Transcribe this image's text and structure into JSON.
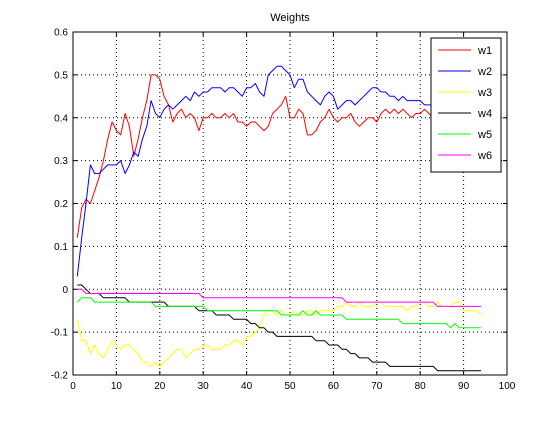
{
  "chart_data": {
    "type": "line",
    "title": "Weights",
    "xlabel": "",
    "ylabel": "",
    "xlim": [
      0,
      100
    ],
    "ylim": [
      -0.2,
      0.6
    ],
    "xticks": [
      0,
      10,
      20,
      30,
      40,
      50,
      60,
      70,
      80,
      90,
      100
    ],
    "yticks": [
      -0.2,
      -0.1,
      0,
      0.1,
      0.2,
      0.3,
      0.4,
      0.5,
      0.6
    ],
    "grid": true,
    "legend_position": "top-right",
    "series": [
      {
        "name": "w1",
        "color": "#ff0000",
        "x": [
          1,
          2,
          3,
          4,
          5,
          6,
          7,
          8,
          9,
          10,
          11,
          12,
          13,
          14,
          15,
          16,
          17,
          18,
          19,
          20,
          21,
          22,
          23,
          24,
          25,
          26,
          27,
          28,
          29,
          30,
          31,
          32,
          33,
          34,
          35,
          36,
          37,
          38,
          39,
          40,
          41,
          42,
          43,
          44,
          45,
          46,
          47,
          48,
          49,
          50,
          51,
          52,
          53,
          54,
          55,
          56,
          57,
          58,
          59,
          60,
          61,
          62,
          63,
          64,
          65,
          66,
          67,
          68,
          69,
          70,
          71,
          72,
          73,
          74,
          75,
          76,
          77,
          78,
          79,
          80,
          81,
          82,
          83,
          84
        ],
        "values": [
          0.12,
          0.19,
          0.21,
          0.2,
          0.23,
          0.26,
          0.3,
          0.35,
          0.39,
          0.37,
          0.36,
          0.41,
          0.38,
          0.31,
          0.35,
          0.4,
          0.44,
          0.5,
          0.5,
          0.49,
          0.45,
          0.43,
          0.39,
          0.41,
          0.42,
          0.4,
          0.41,
          0.4,
          0.37,
          0.4,
          0.4,
          0.41,
          0.4,
          0.4,
          0.41,
          0.4,
          0.41,
          0.39,
          0.39,
          0.38,
          0.39,
          0.39,
          0.38,
          0.37,
          0.38,
          0.41,
          0.42,
          0.43,
          0.45,
          0.4,
          0.4,
          0.42,
          0.41,
          0.36,
          0.36,
          0.37,
          0.39,
          0.4,
          0.42,
          0.4,
          0.39,
          0.4,
          0.4,
          0.41,
          0.39,
          0.38,
          0.39,
          0.4,
          0.4,
          0.39,
          0.41,
          0.42,
          0.41,
          0.42,
          0.41,
          0.42,
          0.41,
          0.4,
          0.41,
          0.41,
          0.42,
          0.41,
          0.4,
          0.4
        ]
      },
      {
        "name": "w2",
        "color": "#0000ff",
        "x": [
          1,
          2,
          3,
          4,
          5,
          6,
          7,
          8,
          9,
          10,
          11,
          12,
          13,
          14,
          15,
          16,
          17,
          18,
          19,
          20,
          21,
          22,
          23,
          24,
          25,
          26,
          27,
          28,
          29,
          30,
          31,
          32,
          33,
          34,
          35,
          36,
          37,
          38,
          39,
          40,
          41,
          42,
          43,
          44,
          45,
          46,
          47,
          48,
          49,
          50,
          51,
          52,
          53,
          54,
          55,
          56,
          57,
          58,
          59,
          60,
          61,
          62,
          63,
          64,
          65,
          66,
          67,
          68,
          69,
          70,
          71,
          72,
          73,
          74,
          75,
          76,
          77,
          78,
          79,
          80,
          81,
          82,
          83,
          84
        ],
        "values": [
          0.03,
          0.12,
          0.2,
          0.29,
          0.27,
          0.27,
          0.28,
          0.29,
          0.29,
          0.29,
          0.3,
          0.27,
          0.29,
          0.32,
          0.31,
          0.35,
          0.38,
          0.44,
          0.41,
          0.4,
          0.42,
          0.43,
          0.42,
          0.43,
          0.44,
          0.45,
          0.44,
          0.46,
          0.45,
          0.46,
          0.46,
          0.47,
          0.47,
          0.47,
          0.46,
          0.47,
          0.47,
          0.46,
          0.45,
          0.47,
          0.47,
          0.48,
          0.46,
          0.45,
          0.5,
          0.51,
          0.52,
          0.52,
          0.51,
          0.5,
          0.47,
          0.49,
          0.49,
          0.46,
          0.45,
          0.44,
          0.43,
          0.45,
          0.46,
          0.45,
          0.42,
          0.43,
          0.44,
          0.44,
          0.43,
          0.44,
          0.45,
          0.46,
          0.47,
          0.47,
          0.46,
          0.46,
          0.45,
          0.45,
          0.44,
          0.45,
          0.44,
          0.44,
          0.44,
          0.44,
          0.43,
          0.43,
          0.43,
          0.42
        ]
      },
      {
        "name": "w3",
        "color": "#ffff00",
        "x": [
          1,
          2,
          3,
          4,
          5,
          6,
          7,
          8,
          9,
          10,
          11,
          12,
          13,
          14,
          15,
          16,
          17,
          18,
          19,
          20,
          21,
          22,
          23,
          24,
          25,
          26,
          27,
          28,
          29,
          30,
          31,
          32,
          33,
          34,
          35,
          36,
          37,
          38,
          39,
          40,
          41,
          42,
          43,
          44,
          45,
          46,
          47,
          48,
          49,
          50,
          51,
          52,
          53,
          54,
          55,
          56,
          57,
          58,
          59,
          60,
          61,
          62,
          63,
          64,
          65,
          66,
          67,
          68,
          69,
          70,
          71,
          72,
          73,
          74,
          75,
          76,
          77,
          78,
          79,
          80,
          81,
          82,
          83,
          84,
          85,
          86,
          87,
          88,
          89,
          90,
          91,
          92,
          93,
          94
        ],
        "values": [
          -0.07,
          -0.12,
          -0.12,
          -0.15,
          -0.13,
          -0.15,
          -0.16,
          -0.14,
          -0.12,
          -0.13,
          -0.14,
          -0.13,
          -0.13,
          -0.14,
          -0.15,
          -0.17,
          -0.17,
          -0.18,
          -0.17,
          -0.18,
          -0.17,
          -0.16,
          -0.15,
          -0.14,
          -0.14,
          -0.16,
          -0.15,
          -0.14,
          -0.14,
          -0.13,
          -0.13,
          -0.14,
          -0.14,
          -0.14,
          -0.13,
          -0.13,
          -0.12,
          -0.12,
          -0.13,
          -0.11,
          -0.11,
          -0.1,
          -0.09,
          -0.06,
          -0.05,
          -0.05,
          -0.06,
          -0.05,
          -0.06,
          -0.06,
          -0.05,
          -0.06,
          -0.06,
          -0.05,
          -0.05,
          -0.06,
          -0.05,
          -0.05,
          -0.05,
          -0.05,
          -0.04,
          -0.04,
          -0.03,
          -0.04,
          -0.04,
          -0.03,
          -0.04,
          -0.04,
          -0.04,
          -0.03,
          -0.03,
          -0.04,
          -0.04,
          -0.04,
          -0.04,
          -0.04,
          -0.05,
          -0.04,
          -0.04,
          -0.03,
          -0.03,
          -0.04,
          -0.04,
          -0.03,
          -0.04,
          -0.04,
          -0.04,
          -0.03,
          -0.03,
          -0.05,
          -0.05,
          -0.05,
          -0.05,
          -0.06
        ]
      },
      {
        "name": "w4",
        "color": "#000000",
        "x": [
          1,
          2,
          3,
          4,
          5,
          6,
          7,
          8,
          9,
          10,
          11,
          12,
          13,
          14,
          15,
          16,
          17,
          18,
          19,
          20,
          21,
          22,
          23,
          24,
          25,
          26,
          27,
          28,
          29,
          30,
          31,
          32,
          33,
          34,
          35,
          36,
          37,
          38,
          39,
          40,
          41,
          42,
          43,
          44,
          45,
          46,
          47,
          48,
          49,
          50,
          51,
          52,
          53,
          54,
          55,
          56,
          57,
          58,
          59,
          60,
          61,
          62,
          63,
          64,
          65,
          66,
          67,
          68,
          69,
          70,
          71,
          72,
          73,
          74,
          75,
          76,
          77,
          78,
          79,
          80,
          81,
          82,
          83,
          84,
          85,
          86,
          87,
          88,
          89,
          90,
          91,
          92,
          93,
          94
        ],
        "values": [
          0.01,
          0.01,
          0.0,
          -0.01,
          -0.01,
          -0.01,
          -0.02,
          -0.02,
          -0.02,
          -0.02,
          -0.02,
          -0.02,
          -0.03,
          -0.03,
          -0.03,
          -0.03,
          -0.03,
          -0.03,
          -0.03,
          -0.03,
          -0.03,
          -0.04,
          -0.04,
          -0.04,
          -0.04,
          -0.04,
          -0.04,
          -0.04,
          -0.05,
          -0.05,
          -0.05,
          -0.05,
          -0.06,
          -0.06,
          -0.06,
          -0.06,
          -0.07,
          -0.07,
          -0.07,
          -0.07,
          -0.08,
          -0.08,
          -0.09,
          -0.09,
          -0.1,
          -0.1,
          -0.11,
          -0.11,
          -0.11,
          -0.11,
          -0.11,
          -0.11,
          -0.11,
          -0.11,
          -0.11,
          -0.12,
          -0.12,
          -0.12,
          -0.13,
          -0.13,
          -0.13,
          -0.14,
          -0.14,
          -0.15,
          -0.15,
          -0.16,
          -0.16,
          -0.16,
          -0.17,
          -0.17,
          -0.17,
          -0.17,
          -0.18,
          -0.18,
          -0.18,
          -0.18,
          -0.18,
          -0.18,
          -0.18,
          -0.18,
          -0.18,
          -0.18,
          -0.18,
          -0.19,
          -0.19,
          -0.19,
          -0.19,
          -0.19,
          -0.19,
          -0.19,
          -0.19,
          -0.19,
          -0.19,
          -0.19
        ]
      },
      {
        "name": "w5",
        "color": "#00ff00",
        "x": [
          1,
          2,
          3,
          4,
          5,
          6,
          7,
          8,
          9,
          10,
          11,
          12,
          13,
          14,
          15,
          16,
          17,
          18,
          19,
          20,
          21,
          22,
          23,
          24,
          25,
          26,
          27,
          28,
          29,
          30,
          31,
          32,
          33,
          34,
          35,
          36,
          37,
          38,
          39,
          40,
          41,
          42,
          43,
          44,
          45,
          46,
          47,
          48,
          49,
          50,
          51,
          52,
          53,
          54,
          55,
          56,
          57,
          58,
          59,
          60,
          61,
          62,
          63,
          64,
          65,
          66,
          67,
          68,
          69,
          70,
          71,
          72,
          73,
          74,
          75,
          76,
          77,
          78,
          79,
          80,
          81,
          82,
          83,
          84,
          85,
          86,
          87,
          88,
          89,
          90,
          91,
          92,
          93,
          94
        ],
        "values": [
          -0.03,
          -0.02,
          -0.02,
          -0.02,
          -0.03,
          -0.03,
          -0.03,
          -0.03,
          -0.03,
          -0.03,
          -0.03,
          -0.03,
          -0.03,
          -0.03,
          -0.03,
          -0.03,
          -0.03,
          -0.03,
          -0.04,
          -0.04,
          -0.04,
          -0.04,
          -0.04,
          -0.04,
          -0.04,
          -0.04,
          -0.04,
          -0.04,
          -0.04,
          -0.04,
          -0.05,
          -0.05,
          -0.05,
          -0.05,
          -0.05,
          -0.05,
          -0.05,
          -0.05,
          -0.05,
          -0.05,
          -0.05,
          -0.05,
          -0.05,
          -0.05,
          -0.05,
          -0.05,
          -0.05,
          -0.06,
          -0.06,
          -0.06,
          -0.06,
          -0.06,
          -0.05,
          -0.06,
          -0.06,
          -0.05,
          -0.06,
          -0.06,
          -0.06,
          -0.06,
          -0.06,
          -0.06,
          -0.07,
          -0.07,
          -0.07,
          -0.07,
          -0.07,
          -0.07,
          -0.07,
          -0.07,
          -0.07,
          -0.07,
          -0.07,
          -0.07,
          -0.07,
          -0.08,
          -0.08,
          -0.08,
          -0.08,
          -0.08,
          -0.08,
          -0.08,
          -0.08,
          -0.08,
          -0.08,
          -0.08,
          -0.09,
          -0.08,
          -0.09,
          -0.09,
          -0.09,
          -0.09,
          -0.09,
          -0.09
        ]
      },
      {
        "name": "w6",
        "color": "#ff00ff",
        "x": [
          1,
          2,
          3,
          4,
          5,
          6,
          7,
          8,
          9,
          10,
          11,
          12,
          13,
          14,
          15,
          16,
          17,
          18,
          19,
          20,
          21,
          22,
          23,
          24,
          25,
          26,
          27,
          28,
          29,
          30,
          31,
          32,
          33,
          34,
          35,
          36,
          37,
          38,
          39,
          40,
          41,
          42,
          43,
          44,
          45,
          46,
          47,
          48,
          49,
          50,
          51,
          52,
          53,
          54,
          55,
          56,
          57,
          58,
          59,
          60,
          61,
          62,
          63,
          64,
          65,
          66,
          67,
          68,
          69,
          70,
          71,
          72,
          73,
          74,
          75,
          76,
          77,
          78,
          79,
          80,
          81,
          82,
          83,
          84,
          85,
          86,
          87,
          88,
          89,
          90,
          91,
          92,
          93,
          94
        ],
        "values": [
          0.0,
          0.0,
          -0.01,
          -0.01,
          -0.01,
          -0.01,
          -0.01,
          -0.01,
          -0.01,
          -0.01,
          -0.01,
          -0.01,
          -0.01,
          -0.01,
          -0.01,
          -0.01,
          -0.01,
          -0.01,
          -0.01,
          -0.01,
          -0.01,
          -0.01,
          -0.01,
          -0.01,
          -0.01,
          -0.01,
          -0.01,
          -0.01,
          -0.01,
          -0.02,
          -0.02,
          -0.02,
          -0.02,
          -0.02,
          -0.02,
          -0.02,
          -0.02,
          -0.02,
          -0.02,
          -0.02,
          -0.02,
          -0.02,
          -0.02,
          -0.02,
          -0.02,
          -0.02,
          -0.02,
          -0.02,
          -0.02,
          -0.02,
          -0.02,
          -0.02,
          -0.02,
          -0.02,
          -0.02,
          -0.02,
          -0.02,
          -0.02,
          -0.02,
          -0.02,
          -0.02,
          -0.02,
          -0.03,
          -0.03,
          -0.03,
          -0.03,
          -0.03,
          -0.03,
          -0.03,
          -0.03,
          -0.03,
          -0.03,
          -0.03,
          -0.03,
          -0.03,
          -0.03,
          -0.03,
          -0.03,
          -0.03,
          -0.03,
          -0.03,
          -0.03,
          -0.03,
          -0.04,
          -0.04,
          -0.04,
          -0.04,
          -0.04,
          -0.04,
          -0.04,
          -0.04,
          -0.04,
          -0.04,
          -0.04
        ]
      }
    ]
  }
}
